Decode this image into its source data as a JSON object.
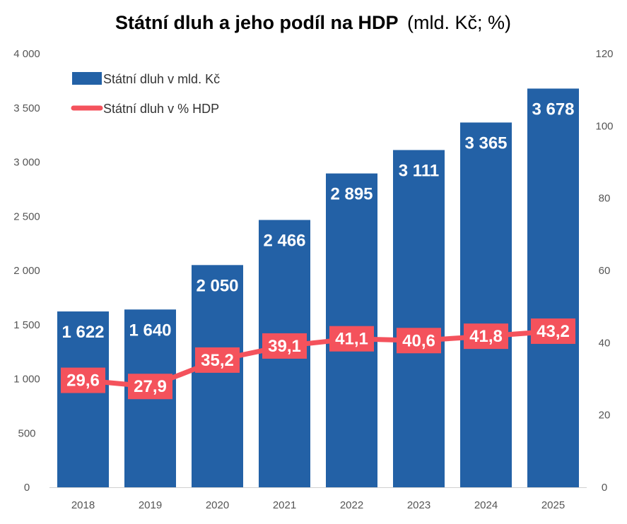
{
  "chart_data": {
    "type": "bar",
    "title": "Státní dluh a jeho podíl na HDP",
    "subtitle": "(mld. Kč; %)",
    "categories": [
      "2018",
      "2019",
      "2020",
      "2021",
      "2022",
      "2023",
      "2024",
      "2025"
    ],
    "series": [
      {
        "name": "Státní dluh v mld. Kč",
        "type": "bar",
        "axis": "left",
        "values": [
          1622,
          1640,
          2050,
          2466,
          2895,
          3111,
          3365,
          3678
        ],
        "labels": [
          "1 622",
          "1 640",
          "2 050",
          "2 466",
          "2 895",
          "3 111",
          "3 365",
          "3 678"
        ],
        "color": "#2361a6"
      },
      {
        "name": "Státní dluh v % HDP",
        "type": "line",
        "axis": "right",
        "values": [
          29.6,
          27.9,
          35.2,
          39.1,
          41.1,
          40.6,
          41.8,
          43.2
        ],
        "labels": [
          "29,6",
          "27,9",
          "35,2",
          "39,1",
          "41,1",
          "40,6",
          "41,8",
          "43,2"
        ],
        "color": "#f4525c"
      }
    ],
    "y_left": {
      "min": 0,
      "max": 4000,
      "ticks": [
        0,
        500,
        1000,
        1500,
        2000,
        2500,
        3000,
        3500,
        4000
      ],
      "tick_labels": [
        "0",
        "500",
        "1 000",
        "1 500",
        "2 000",
        "2 500",
        "3 000",
        "3 500",
        "4 000"
      ]
    },
    "y_right": {
      "min": 0,
      "max": 120,
      "ticks": [
        0,
        20,
        40,
        60,
        80,
        100,
        120
      ],
      "tick_labels": [
        "0",
        "20",
        "40",
        "60",
        "80",
        "100",
        "120"
      ]
    },
    "legend_position": "top-left",
    "grid": false
  }
}
